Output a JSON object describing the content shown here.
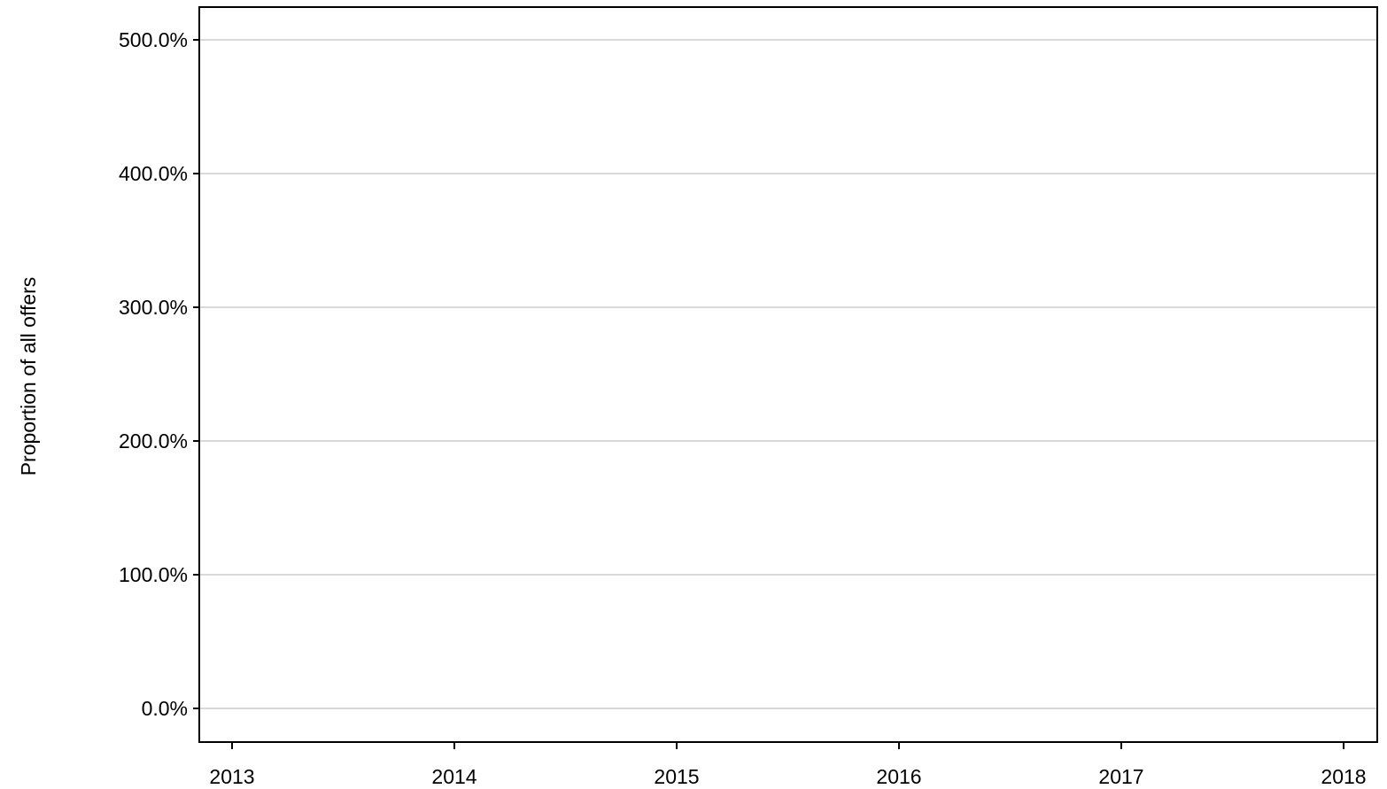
{
  "chart_data": {
    "type": "line",
    "title": "",
    "xlabel": "",
    "ylabel": "Proportion of all offers",
    "x_ticks": [
      "2013",
      "2014",
      "2015",
      "2016",
      "2017",
      "2018"
    ],
    "y_ticks": [
      {
        "value": 0,
        "label": "0.0%"
      },
      {
        "value": 100,
        "label": "100.0%"
      },
      {
        "value": 200,
        "label": "200.0%"
      },
      {
        "value": 300,
        "label": "300.0%"
      },
      {
        "value": 400,
        "label": "400.0%"
      },
      {
        "value": 500,
        "label": "500.0%"
      }
    ],
    "xlim": [
      2013,
      2018
    ],
    "ylim": [
      0,
      500
    ],
    "grid": "horizontal",
    "series": [],
    "colors": {
      "gridline": "#d9d9d9",
      "axis": "#000000",
      "text": "#000000"
    }
  }
}
